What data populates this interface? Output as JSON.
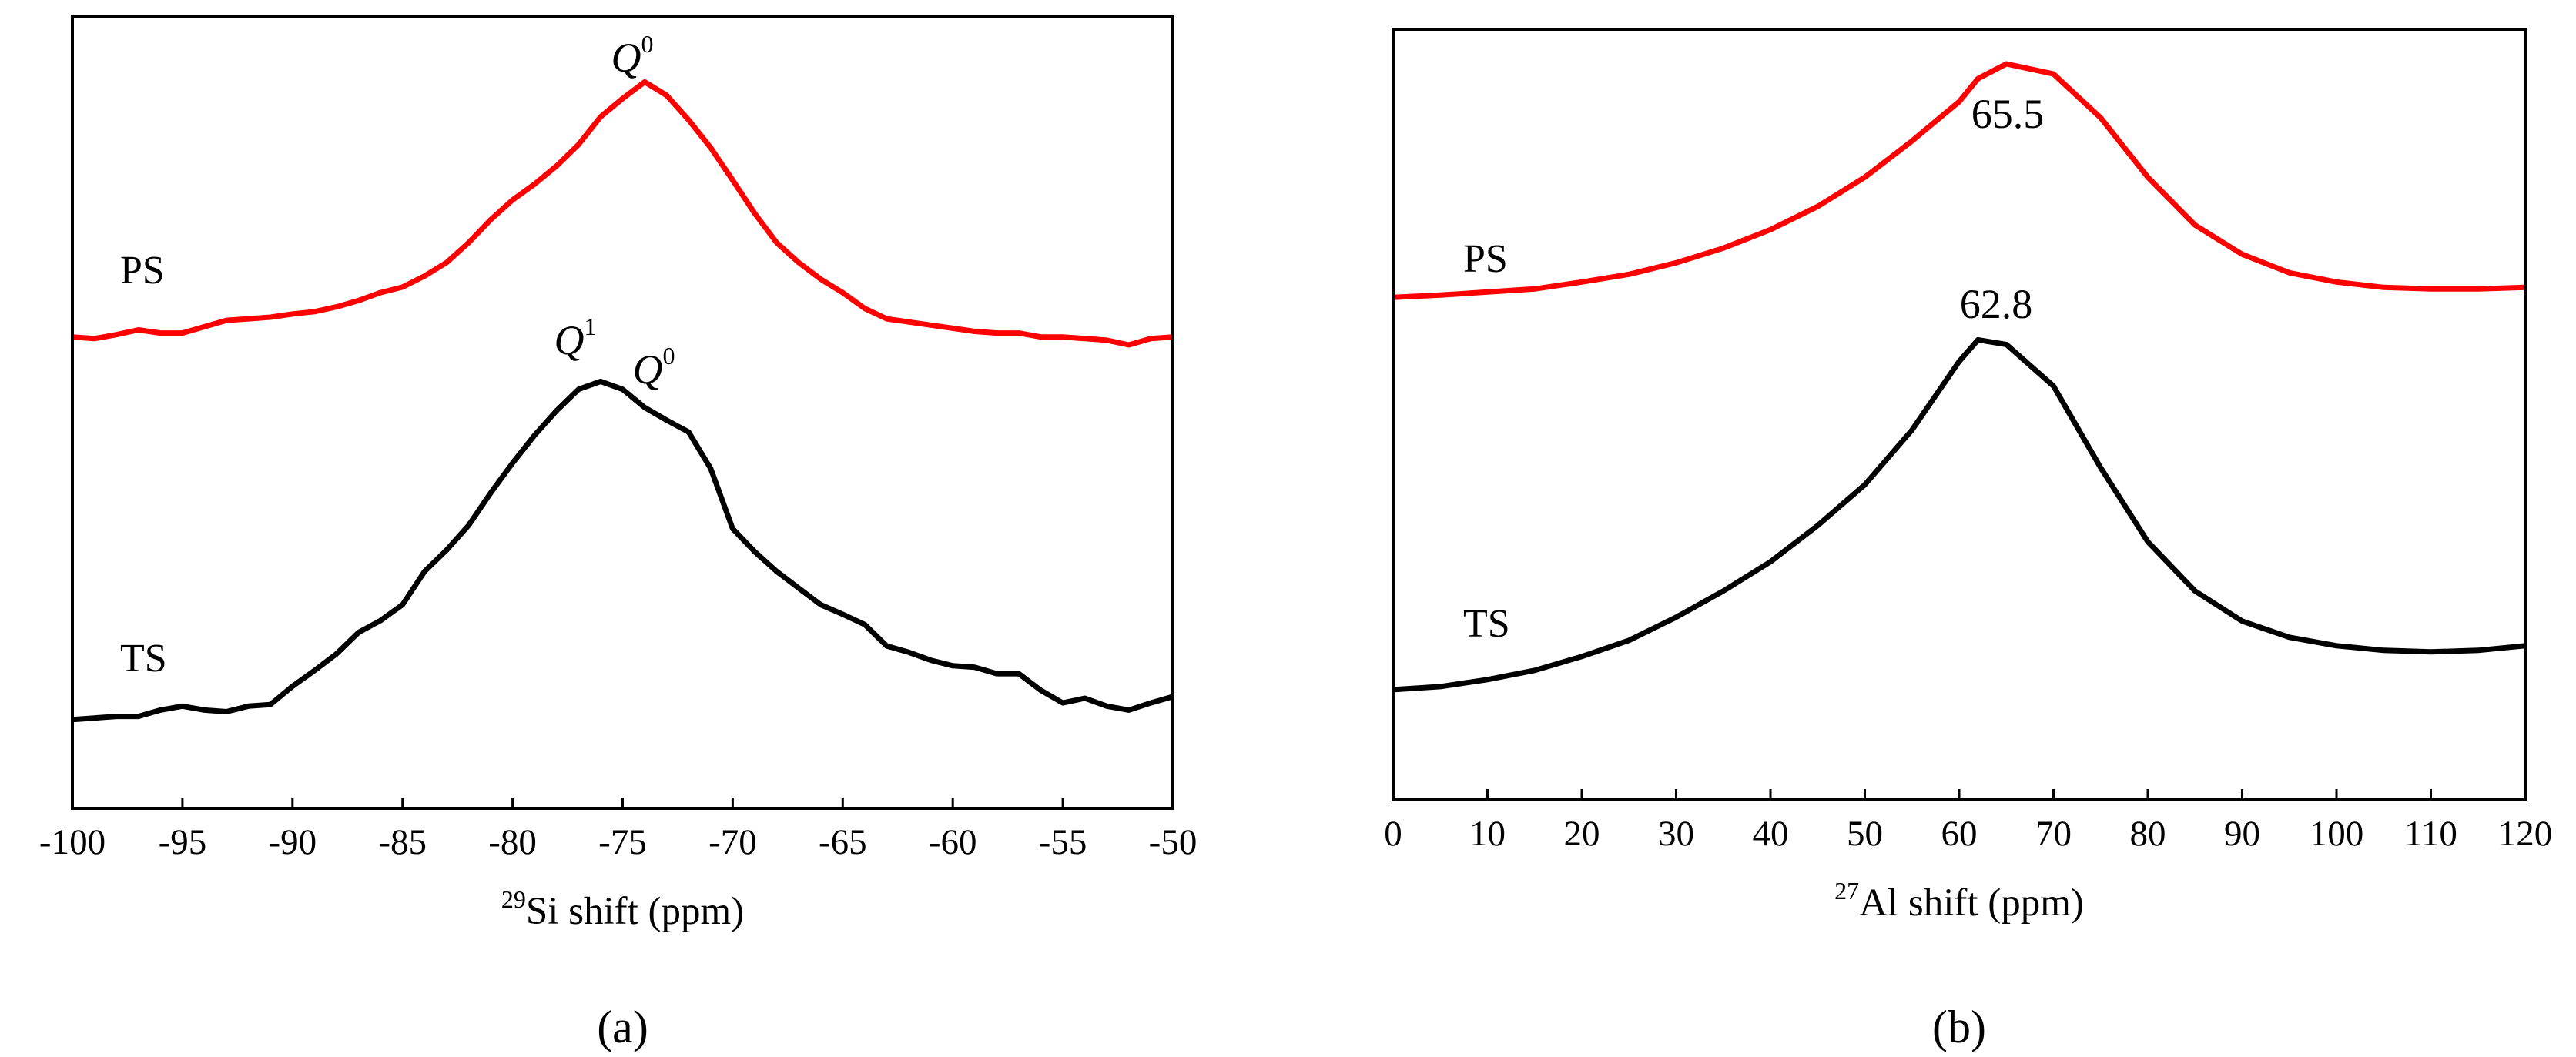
{
  "chart_data": [
    {
      "type": "line",
      "x": [
        -100,
        -99,
        -98,
        -97,
        -96,
        -95,
        -94,
        -93,
        -92,
        -91,
        -90,
        -89,
        -88,
        -87,
        -86,
        -85,
        -84,
        -83,
        -82,
        -81,
        -80,
        -79,
        -78,
        -77,
        -76,
        -75,
        -74,
        -73,
        -72,
        -71,
        -70,
        -69,
        -68,
        -67,
        -66,
        -65,
        -64,
        -63,
        -62,
        -61,
        -60,
        -59,
        -58,
        -57,
        -56,
        -55,
        -54,
        -53,
        -52,
        -51,
        -50
      ],
      "series": [
        {
          "name": "PS",
          "color": "#ff0000",
          "values": [
            59.5,
            59.3,
            59.8,
            60.4,
            60.0,
            60.0,
            60.8,
            61.6,
            61.8,
            62.0,
            62.4,
            62.7,
            63.3,
            64.1,
            65.1,
            65.8,
            67.2,
            68.9,
            71.4,
            74.3,
            76.8,
            78.8,
            81.1,
            83.8,
            87.3,
            89.6,
            91.7,
            90.0,
            86.9,
            83.4,
            79.3,
            75.1,
            71.4,
            68.9,
            66.8,
            65.1,
            63.1,
            61.8,
            61.4,
            61.0,
            60.6,
            60.2,
            60.0,
            60.0,
            59.5,
            59.5,
            59.3,
            59.1,
            58.5,
            59.3,
            59.5
          ]
        },
        {
          "name": "TS",
          "color": "#000000",
          "values": [
            11.2,
            11.4,
            11.6,
            11.6,
            12.4,
            12.9,
            12.4,
            12.2,
            12.9,
            13.1,
            15.4,
            17.4,
            19.5,
            22.2,
            23.7,
            25.7,
            29.9,
            32.6,
            35.7,
            39.8,
            43.6,
            47.1,
            50.2,
            52.9,
            53.9,
            52.9,
            50.6,
            49.0,
            47.5,
            42.9,
            35.3,
            32.4,
            29.9,
            27.8,
            25.7,
            24.5,
            23.2,
            20.5,
            19.7,
            18.7,
            18.0,
            17.8,
            17.0,
            17.0,
            14.9,
            13.3,
            13.9,
            12.9,
            12.4,
            13.3,
            14.1
          ]
        }
      ],
      "xlim": [
        -100,
        -50
      ],
      "xticks": [
        -100,
        -95,
        -90,
        -85,
        -80,
        -75,
        -70,
        -65,
        -60,
        -55,
        -50
      ],
      "ylim": [
        0,
        100
      ],
      "xlabel_sup": "29",
      "xlabel": "Si shift (ppm)",
      "annotations": [
        {
          "text": "Q",
          "sup": "0"
        },
        {
          "text": "Q",
          "sup": "1"
        },
        {
          "text": "Q",
          "sup": "0"
        }
      ],
      "panel_label": "(a)"
    },
    {
      "type": "line",
      "x": [
        0,
        5,
        10,
        15,
        20,
        25,
        30,
        35,
        40,
        45,
        50,
        55,
        60,
        62,
        65,
        70,
        75,
        80,
        85,
        90,
        95,
        100,
        105,
        110,
        115,
        120
      ],
      "series": [
        {
          "name": "PS",
          "color": "#ff0000",
          "values": [
            65.2,
            65.5,
            65.9,
            66.3,
            67.2,
            68.2,
            69.7,
            71.6,
            74.0,
            77.0,
            80.8,
            85.5,
            90.6,
            93.6,
            95.5,
            94.2,
            88.5,
            80.8,
            74.6,
            70.8,
            68.4,
            67.2,
            66.5,
            66.3,
            66.3,
            66.5
          ]
        },
        {
          "name": "TS",
          "color": "#000000",
          "values": [
            14.3,
            14.7,
            15.6,
            16.8,
            18.6,
            20.7,
            23.7,
            27.1,
            30.9,
            35.6,
            40.9,
            48.0,
            56.9,
            59.7,
            59.1,
            53.7,
            43.1,
            33.5,
            27.1,
            23.2,
            21.1,
            20.0,
            19.4,
            19.2,
            19.4,
            20.0
          ]
        }
      ],
      "xlim": [
        0,
        120
      ],
      "xticks": [
        0,
        10,
        20,
        30,
        40,
        50,
        60,
        70,
        80,
        90,
        100,
        110,
        120
      ],
      "ylim": [
        0,
        100
      ],
      "xlabel_sup": "27",
      "xlabel": "Al shift (ppm)",
      "annotations": [
        {
          "text": "65.5"
        },
        {
          "text": "62.8"
        }
      ],
      "panel_label": "(b)"
    }
  ]
}
